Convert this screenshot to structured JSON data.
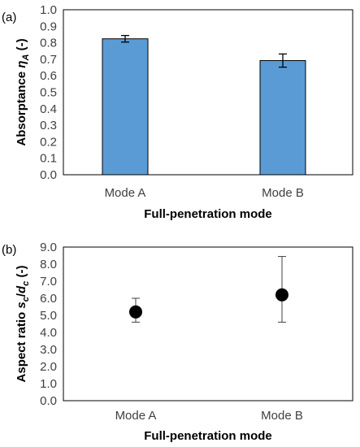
{
  "chart_data": [
    {
      "type": "bar",
      "panel_label": "(a)",
      "categories": [
        "Mode A",
        "Mode B"
      ],
      "values": [
        0.824,
        0.692
      ],
      "error": [
        0.02,
        0.04
      ],
      "xlabel": "Full-penetration mode",
      "ylabel": "Absorptance ηA (-)",
      "ylabel_parts": {
        "before": "Absorptance ",
        "symbol": "η",
        "sub": "A",
        "after": " (-)"
      },
      "ylim": [
        0,
        1.0
      ],
      "yticks": [
        "0.0",
        "0.1",
        "0.2",
        "0.3",
        "0.4",
        "0.5",
        "0.6",
        "0.7",
        "0.8",
        "0.9",
        "1.0"
      ],
      "bar_color": "#5b9bd5",
      "grid": false
    },
    {
      "type": "scatter",
      "panel_label": "(b)",
      "categories": [
        "Mode A",
        "Mode B"
      ],
      "values": [
        5.2,
        6.2
      ],
      "error_low": [
        4.6,
        4.6
      ],
      "error_high": [
        6.0,
        8.45
      ],
      "xlabel": "Full-penetration mode",
      "ylabel": "Aspect ratio sc/dc (-)",
      "ylabel_parts": {
        "before": "Aspect ratio ",
        "s": "s",
        "s_sub": "c",
        "slash": "/",
        "d": "d",
        "d_sub": "c",
        "after": " (-)"
      },
      "ylim": [
        0,
        9.0
      ],
      "yticks": [
        "0.0",
        "1.0",
        "2.0",
        "3.0",
        "4.0",
        "5.0",
        "6.0",
        "7.0",
        "8.0",
        "9.0"
      ],
      "marker_color": "#000000",
      "grid": false
    }
  ]
}
